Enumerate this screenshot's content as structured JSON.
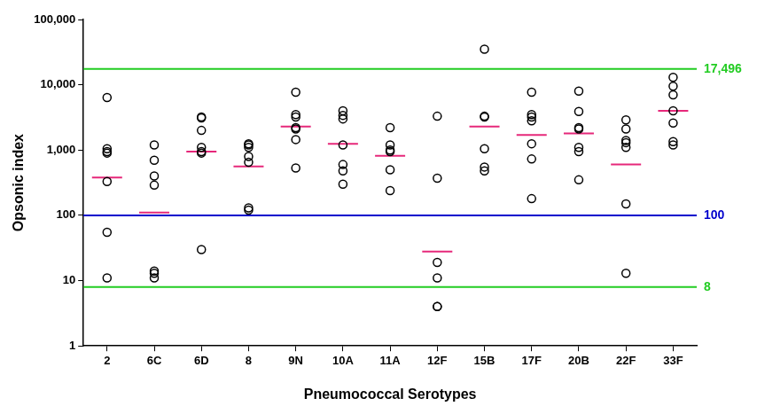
{
  "chart_data": {
    "type": "scatter",
    "x_label": "Pneumococcal Serotypes",
    "y_label": "Opsonic index",
    "categories": [
      "2",
      "6C",
      "6D",
      "8",
      "9N",
      "10A",
      "11A",
      "12F",
      "15B",
      "17F",
      "20B",
      "22F",
      "33F"
    ],
    "series": [
      {
        "type": "scatter",
        "color": "#000000",
        "marker": "open_circle",
        "values": [
          [
            6400,
            1050,
            950,
            900,
            330,
            55,
            11
          ],
          [
            1200,
            700,
            400,
            290,
            14,
            13,
            11
          ],
          [
            3200,
            3100,
            2000,
            1100,
            950,
            900,
            30
          ],
          [
            1250,
            1200,
            1100,
            800,
            650,
            130,
            120
          ],
          [
            7700,
            3500,
            3200,
            2200,
            2100,
            1450,
            530
          ],
          [
            4000,
            3400,
            3000,
            1200,
            600,
            480,
            300
          ],
          [
            2200,
            1200,
            1000,
            950,
            500,
            240
          ],
          [
            3300,
            370,
            19,
            11,
            4,
            4
          ],
          [
            35000,
            3300,
            3200,
            1050,
            550,
            480
          ],
          [
            7700,
            3500,
            3200,
            2800,
            1250,
            730,
            180
          ],
          [
            8000,
            3900,
            2200,
            2100,
            1100,
            950,
            350
          ],
          [
            2900,
            2100,
            1400,
            1300,
            1100,
            150,
            13
          ],
          [
            13000,
            9500,
            7000,
            4000,
            2600,
            1350,
            1200
          ]
        ]
      },
      {
        "type": "median",
        "color": "#e6287a",
        "marker": "line",
        "values": [
          380,
          110,
          950,
          560,
          2300,
          1250,
          820,
          28,
          2300,
          1700,
          1800,
          600,
          4000
        ]
      }
    ],
    "annotations": [
      {
        "value": 17496,
        "label": "17,496",
        "color": "#22cc22"
      },
      {
        "value": 100,
        "label": "100",
        "color": "#0000cc"
      },
      {
        "value": 8,
        "label": "8",
        "color": "#22cc22"
      }
    ],
    "log": "y",
    "grid": false,
    "ylim": [
      1,
      100000
    ],
    "yticks": [
      1,
      10,
      100,
      {
        "value": 1000,
        "label": "1,000"
      },
      {
        "value": 10000,
        "label": "10,000"
      },
      {
        "value": 100000,
        "label": "100,000"
      }
    ]
  }
}
